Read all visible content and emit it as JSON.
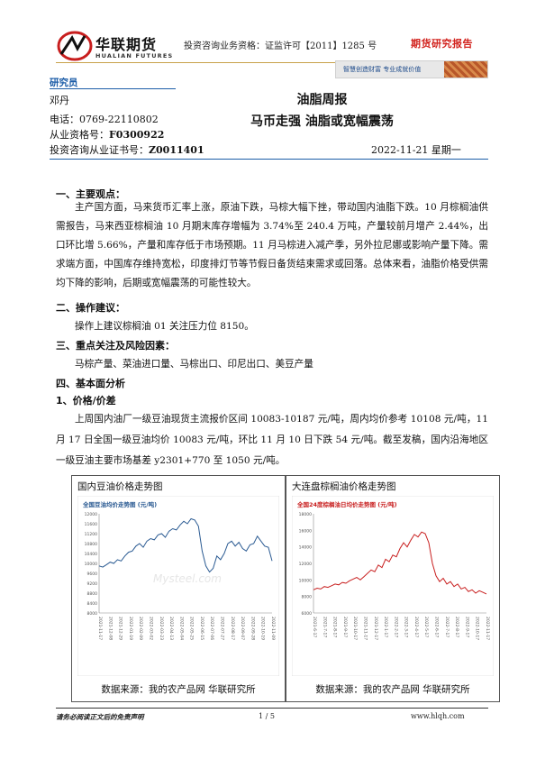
{
  "header": {
    "brand_cn": "华联期货",
    "brand_en": "HUALIAN FUTURES",
    "license": "投资咨询业务资格：证监许可【2011】1285 号",
    "report_type": "期货研究报告",
    "banner_text": "智慧创造财富  专业成就价值"
  },
  "author": {
    "section_label": "研究员",
    "name": "邓丹",
    "phone": "电话：0769-22110802",
    "cert_label": "从业资格号：",
    "cert_no": "F0300922",
    "advisor_label": "投资咨询从业证书号：",
    "advisor_no": "Z0011401"
  },
  "title": {
    "main": "油脂周报",
    "sub": "马币走强  油脂或宽幅震荡",
    "date": "2022-11-21  星期一"
  },
  "sections": {
    "s1_heading": "一、主要观点：",
    "s1_body": "主产国方面，马来货币汇率上涨，原油下跌，马棕大幅下挫，带动国内油脂下跌。10 月棕榈油供需报告，马来西亚棕榈油 10 月期末库存增幅为 3.74%至 240.4 万吨，产量较前月增产 2.44%，出口环比增 5.66%，产量和库存低于市场预期。11 月马棕进入减产季，另外拉尼娜或影响产量下降。需求端方面，中国库存维持宽松，印度排灯节等节假日备货结束需求或回落。总体来看，油脂价格受供需均下降的影响，后期或宽幅震荡的可能性较大。",
    "s2_heading": "二、操作建议：",
    "s2_body": "操作上建议棕榈油 01 关注压力位 8150。",
    "s3_heading": "三、重点关注及风险因素：",
    "s3_body": "马棕产量、菜油进口量、马棕出口、印尼出口、美豆产量",
    "s4_heading": "四、基本面分析",
    "s4_1_heading": "1、价格/价差",
    "s4_1_body": "上周国内油厂一级豆油现货主流报价区间 10083-10187 元/吨，周内均价参考 10108 元/吨，11 月 17 日全国一级豆油均价 10083 元/吨，环比 11 月 10 日下跌 54 元/吨。截至发稿，国内沿海地区一级豆油主要市场基差 y2301+770 至 1050 元/吨。"
  },
  "charts": {
    "left_title": "国内豆油价格走势图",
    "left_inner_title": "全国豆油均价走势图 (元/吨)",
    "left_watermark": "Mysteel.com",
    "left_source": "数据来源：我的农产品网  华联研究所",
    "right_title": "大连盘棕榈油价格走势图",
    "right_inner_title": "全国24度棕榈油日均价走势图 (元/吨)",
    "right_source": "数据来源：我的农产品网  华联研究所",
    "left_color": "#2a5a92",
    "right_color": "#c81e1e"
  },
  "chart_data": [
    {
      "type": "line",
      "title": "全国豆油均价走势图 (元/吨)",
      "ylim": [
        8000,
        12000
      ],
      "yticks": [
        "12000",
        "11600",
        "11200",
        "10800",
        "10400",
        "10000",
        "9600",
        "9200",
        "8800",
        "8400",
        "8000"
      ],
      "xticks": [
        "2021-11-17",
        "2021-12-08",
        "2021-12-29",
        "2022-01-19",
        "2022-02-09",
        "2022-03-02",
        "2022-03-23",
        "2022-04-13",
        "2022-05-04",
        "2022-05-25",
        "2022-06-15",
        "2022-07-06",
        "2022-07-27",
        "2022-08-17",
        "2022-09-07",
        "2022-09-28",
        "2022-10-19",
        "2022-11-09"
      ],
      "series": [
        {
          "values": [
            9900,
            9850,
            9950,
            10050,
            10000,
            10150,
            10100,
            10300,
            10450,
            10500,
            10700,
            10800,
            10650,
            10900,
            11000,
            10950,
            11150,
            11200,
            11050,
            11300,
            11400,
            11350,
            11550,
            11700,
            11600,
            11800,
            11750,
            11500,
            10500,
            9900,
            9650,
            9800,
            10300,
            10150,
            10400,
            10800,
            10900,
            10700,
            10850,
            10600,
            10500,
            10750,
            10800,
            11100,
            10900,
            10700,
            10650,
            10100
          ]
        }
      ],
      "grid": false
    },
    {
      "type": "line",
      "title": "全国24度棕榈油日均价走势图 (元/吨)",
      "ylim": [
        6000,
        18000
      ],
      "yticks": [
        "18000",
        "16000",
        "14000",
        "12000",
        "10000",
        "8000",
        "6000"
      ],
      "xticks": [
        "2021-6-17",
        "2021-7-17",
        "2021-8-17",
        "2021-9-17",
        "2021-10-17",
        "2021-11-17",
        "2021-12-17",
        "2022-1-17",
        "2022-2-17",
        "2022-3-17",
        "2022-4-17",
        "2022-5-17",
        "2022-6-17",
        "2022-7-17",
        "2022-8-17",
        "2022-9-17",
        "2022-10-17",
        "2022-11-17"
      ],
      "series": [
        {
          "values": [
            8800,
            9000,
            8900,
            9200,
            9100,
            9300,
            9500,
            9400,
            9700,
            9600,
            9900,
            10100,
            10300,
            10000,
            10400,
            10800,
            11200,
            11000,
            11800,
            11500,
            12500,
            12200,
            13000,
            12800,
            13800,
            14500,
            14000,
            14800,
            15500,
            15200,
            15800,
            15600,
            14500,
            12000,
            10500,
            9800,
            10200,
            9500,
            9800,
            9200,
            9500,
            8900,
            9100,
            8600,
            8800,
            8400,
            8700,
            8500,
            8300
          ]
        }
      ],
      "grid": false
    }
  ],
  "footer": {
    "disclaimer": "请务必阅读正文后的免责声明",
    "page": "1 / 5",
    "site": "www.hlqh.com"
  }
}
